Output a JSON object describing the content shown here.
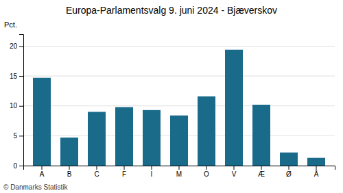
{
  "chart_data": {
    "type": "bar",
    "title": "Europa-Parlamentsvalg 9. juni 2024 - Bjæverskov",
    "ylabel": "Pct.",
    "footer": "© Danmarks Statistik",
    "categories": [
      "A",
      "B",
      "C",
      "F",
      "I",
      "M",
      "O",
      "V",
      "Æ",
      "Ø",
      "Å"
    ],
    "values": [
      14.7,
      4.7,
      9.0,
      9.8,
      9.3,
      8.4,
      11.6,
      19.4,
      10.2,
      2.2,
      1.3
    ],
    "color": "#1a6b8a",
    "ylim": [
      0,
      22
    ],
    "yticks": [
      0,
      5,
      10,
      15,
      20
    ],
    "grid": true
  }
}
